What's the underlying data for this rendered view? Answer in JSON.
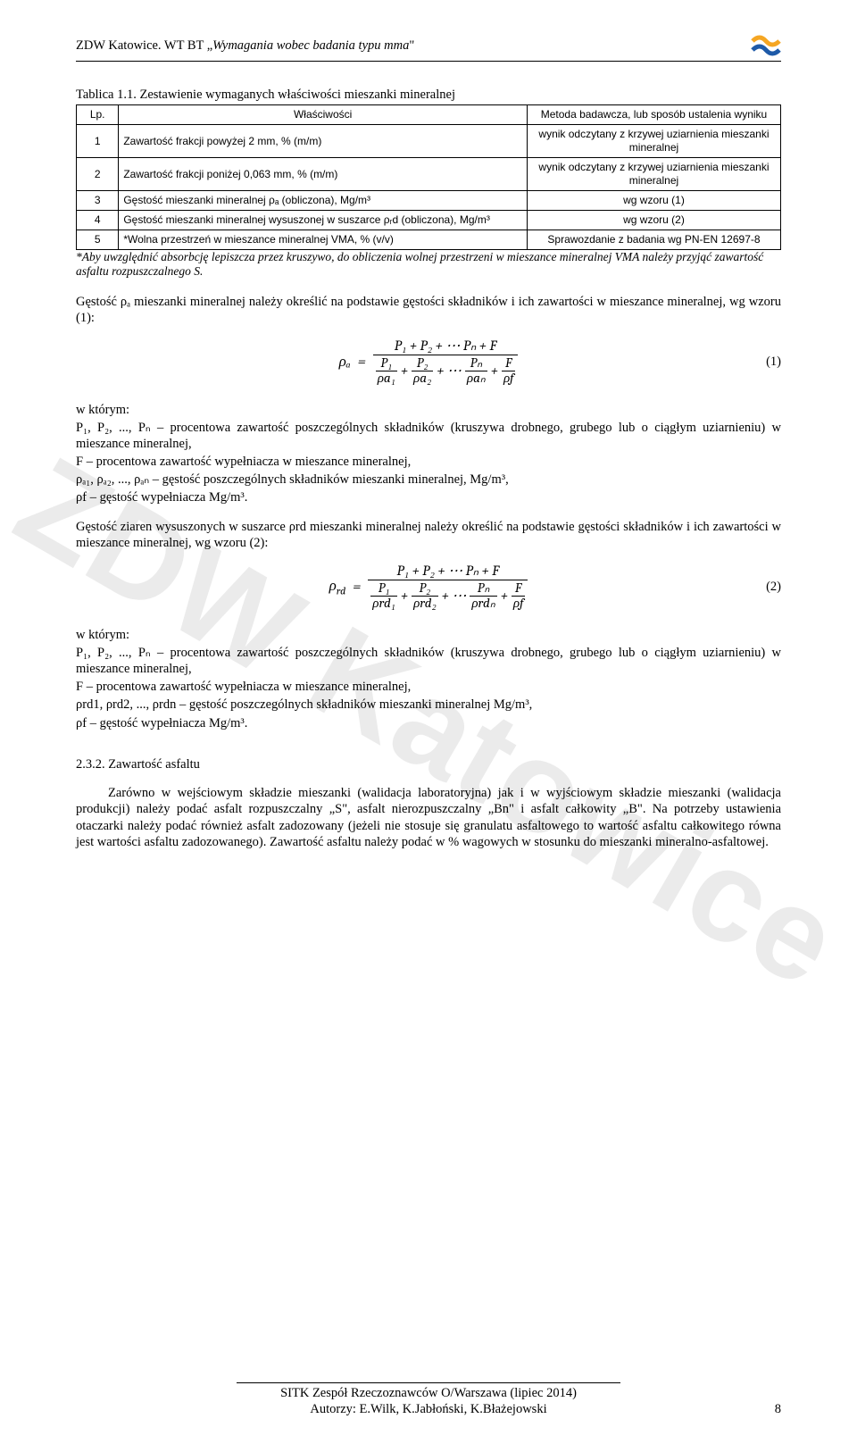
{
  "header": {
    "left_plain": "ZDW Katowice. WT BT „",
    "left_italic": "Wymagania wobec badania typu mma",
    "left_close": "\"",
    "logo_colors": {
      "top": "#f5a623",
      "bottom": "#1e5aa8"
    }
  },
  "watermark": "ZDW Katowice",
  "table_title": "Tablica 1.1. Zestawienie wymaganych właściwości mieszanki mineralnej",
  "table": {
    "headers": [
      "Lp.",
      "Właściwości",
      "Metoda badawcza, lub sposób ustalenia wyniku"
    ],
    "col_widths": [
      "6%",
      "58%",
      "36%"
    ],
    "rows": [
      {
        "no": "1",
        "prop": "Zawartość frakcji powyżej 2 mm, % (m/m)",
        "method": "wynik odczytany z krzywej uziarnienia mieszanki mineralnej"
      },
      {
        "no": "2",
        "prop": "Zawartość frakcji poniżej 0,063 mm, % (m/m)",
        "method": "wynik odczytany z krzywej uziarnienia mieszanki mineralnej"
      },
      {
        "no": "3",
        "prop": "Gęstość mieszanki mineralnej ρₐ (obliczona), Mg/m³",
        "method": "wg wzoru (1)"
      },
      {
        "no": "4",
        "prop": "Gęstość mieszanki mineralnej wysuszonej w suszarce ρᵣd (obliczona), Mg/m³",
        "method": "wg wzoru (2)"
      },
      {
        "no": "5",
        "prop": "*Wolna przestrzeń w mieszance mineralnej VMA, % (v/v)",
        "method": "Sprawozdanie z badania wg PN-EN 12697-8"
      }
    ]
  },
  "note": "*Aby uwzględnić absorbcję lepiszcza przez kruszywo, do obliczenia wolnej przestrzeni w mieszance mineralnej VMA należy przyjąć zawartość asfaltu rozpuszczalnego S.",
  "para1": "Gęstość ρₐ mieszanki mineralnej należy określić na podstawie gęstości składników i ich zawartości w mieszance mineralnej, wg wzoru (1):",
  "formula1": {
    "lhs": "ρₐ",
    "num": "P₁ + P₂ + ⋯ Pₙ + F",
    "den_terms": [
      {
        "top": "P₁",
        "bot": "ρa₁"
      },
      {
        "top": "P₂",
        "bot": "ρa₂"
      },
      {
        "top": "Pₙ",
        "bot": "ρaₙ"
      },
      {
        "top": "F",
        "bot": "ρf"
      }
    ],
    "eq_num": "(1)"
  },
  "defs1": {
    "heading": "w którym:",
    "lines": [
      "P₁, P₂, ..., Pₙ – procentowa zawartość poszczególnych składników (kruszywa drobnego, grubego lub o ciągłym uziarnieniu) w mieszance mineralnej,",
      "F – procentowa zawartość wypełniacza w mieszance mineralnej,",
      "ρₐ₁, ρₐ₂, ..., ρₐₙ – gęstość poszczególnych składników mieszanki mineralnej, Mg/m³,",
      "ρf  – gęstość wypełniacza Mg/m³."
    ]
  },
  "para2": "Gęstość ziaren wysuszonych w suszarce ρrd mieszanki mineralnej należy określić na podstawie gęstości składników i ich zawartości w mieszance mineralnej, wg wzoru (2):",
  "formula2": {
    "lhs": "ρrd",
    "num": "P₁ + P₂ + ⋯ Pₙ + F",
    "den_terms": [
      {
        "top": "P₁",
        "bot": "ρrd₁"
      },
      {
        "top": "P₂",
        "bot": "ρrd₂"
      },
      {
        "top": "Pₙ",
        "bot": "ρrdₙ"
      },
      {
        "top": "F",
        "bot": "ρf"
      }
    ],
    "eq_num": "(2)"
  },
  "defs2": {
    "heading": "w którym:",
    "lines": [
      "P₁, P₂, ..., Pₙ – procentowa zawartość poszczególnych składników (kruszywa drobnego, grubego lub o ciągłym uziarnieniu) w mieszance mineralnej,",
      "F – procentowa zawartość wypełniacza w mieszance mineralnej,",
      "ρrd1, ρrd2, ..., ρrdn – gęstość poszczególnych składników mieszanki mineralnej Mg/m³,",
      "ρf – gęstość wypełniacza Mg/m³."
    ]
  },
  "section": {
    "heading": "2.3.2. Zawartość  asfaltu",
    "body": "Zarówno w wejściowym składzie mieszanki (walidacja laboratoryjna) jak i w wyjściowym składzie mieszanki (walidacja produkcji) należy podać asfalt rozpuszczalny „S\", asfalt nierozpuszczalny „Bn\" i asfalt całkowity „B\". Na potrzeby ustawienia otaczarki należy podać również asfalt zadozowany (jeżeli nie stosuje się granulatu asfaltowego to wartość asfaltu całkowitego równa jest wartości asfaltu zadozowanego). Zawartość asfaltu należy podać w % wagowych w stosunku do mieszanki mineralno-asfaltowej."
  },
  "footer": {
    "line1": "SITK Zespół Rzeczoznawców O/Warszawa (lipiec 2014)",
    "line2": "Autorzy: E.Wilk, K.Jabłoński, K.Błażejowski",
    "page_num": "8"
  }
}
